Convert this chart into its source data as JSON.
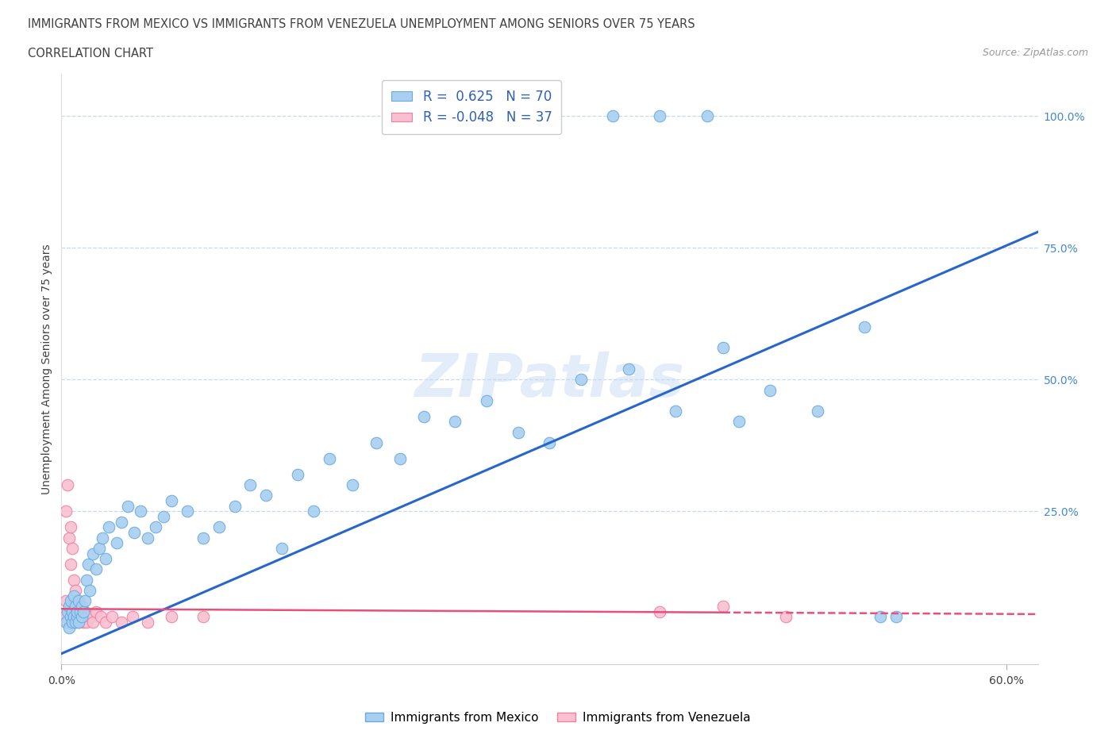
{
  "title_line1": "IMMIGRANTS FROM MEXICO VS IMMIGRANTS FROM VENEZUELA UNEMPLOYMENT AMONG SENIORS OVER 75 YEARS",
  "title_line2": "CORRELATION CHART",
  "source_text": "Source: ZipAtlas.com",
  "ylabel": "Unemployment Among Seniors over 75 years",
  "xlim": [
    0.0,
    0.62
  ],
  "ylim": [
    -0.04,
    1.08
  ],
  "watermark": "ZIPatlas",
  "mexico_color": "#a8cff0",
  "mexico_edge_color": "#6aaae0",
  "venezuela_color": "#f8c0d0",
  "venezuela_edge_color": "#f080a0",
  "mexico_R": 0.625,
  "mexico_N": 70,
  "venezuela_R": -0.048,
  "venezuela_N": 37,
  "trend_mexico_color": "#2866cc",
  "trend_venezuela_color": "#e8507a",
  "grid_color": "#c8d8ee",
  "background_color": "#ffffff",
  "title_color": "#404040",
  "legend_R_color": "#3060b0",
  "mexico_x": [
    0.003,
    0.004,
    0.005,
    0.005,
    0.006,
    0.006,
    0.007,
    0.007,
    0.008,
    0.008,
    0.009,
    0.009,
    0.01,
    0.01,
    0.011,
    0.011,
    0.012,
    0.013,
    0.013,
    0.014,
    0.015,
    0.016,
    0.017,
    0.018,
    0.02,
    0.022,
    0.024,
    0.026,
    0.028,
    0.03,
    0.035,
    0.038,
    0.042,
    0.046,
    0.05,
    0.055,
    0.06,
    0.065,
    0.07,
    0.08,
    0.09,
    0.1,
    0.11,
    0.12,
    0.13,
    0.14,
    0.15,
    0.16,
    0.17,
    0.185,
    0.2,
    0.215,
    0.23,
    0.25,
    0.27,
    0.29,
    0.31,
    0.33,
    0.36,
    0.39,
    0.42,
    0.45,
    0.48,
    0.51,
    0.35,
    0.38,
    0.41,
    0.43,
    0.52,
    0.53
  ],
  "mexico_y": [
    0.04,
    0.06,
    0.03,
    0.07,
    0.05,
    0.08,
    0.04,
    0.06,
    0.05,
    0.09,
    0.04,
    0.07,
    0.05,
    0.06,
    0.08,
    0.04,
    0.06,
    0.05,
    0.07,
    0.06,
    0.08,
    0.12,
    0.15,
    0.1,
    0.17,
    0.14,
    0.18,
    0.2,
    0.16,
    0.22,
    0.19,
    0.23,
    0.26,
    0.21,
    0.25,
    0.2,
    0.22,
    0.24,
    0.27,
    0.25,
    0.2,
    0.22,
    0.26,
    0.3,
    0.28,
    0.18,
    0.32,
    0.25,
    0.35,
    0.3,
    0.38,
    0.35,
    0.43,
    0.42,
    0.46,
    0.4,
    0.38,
    0.5,
    0.52,
    0.44,
    0.56,
    0.48,
    0.44,
    0.6,
    1.0,
    1.0,
    1.0,
    0.42,
    0.05,
    0.05
  ],
  "venezuela_x": [
    0.002,
    0.003,
    0.003,
    0.004,
    0.004,
    0.005,
    0.005,
    0.006,
    0.006,
    0.007,
    0.007,
    0.008,
    0.008,
    0.009,
    0.009,
    0.01,
    0.01,
    0.011,
    0.012,
    0.013,
    0.014,
    0.015,
    0.016,
    0.018,
    0.02,
    0.022,
    0.025,
    0.028,
    0.032,
    0.038,
    0.045,
    0.055,
    0.07,
    0.09,
    0.38,
    0.42,
    0.46
  ],
  "venezuela_y": [
    0.05,
    0.25,
    0.08,
    0.3,
    0.04,
    0.2,
    0.06,
    0.15,
    0.22,
    0.07,
    0.18,
    0.05,
    0.12,
    0.04,
    0.1,
    0.08,
    0.06,
    0.04,
    0.07,
    0.05,
    0.04,
    0.06,
    0.04,
    0.05,
    0.04,
    0.06,
    0.05,
    0.04,
    0.05,
    0.04,
    0.05,
    0.04,
    0.05,
    0.05,
    0.06,
    0.07,
    0.05
  ],
  "trend_mexico_x0": 0.0,
  "trend_mexico_x1": 0.62,
  "trend_mexico_y0": -0.02,
  "trend_mexico_y1": 0.78,
  "trend_venezuela_x0": 0.0,
  "trend_venezuela_x1": 0.62,
  "trend_venezuela_y0": 0.065,
  "trend_venezuela_y1": 0.055
}
